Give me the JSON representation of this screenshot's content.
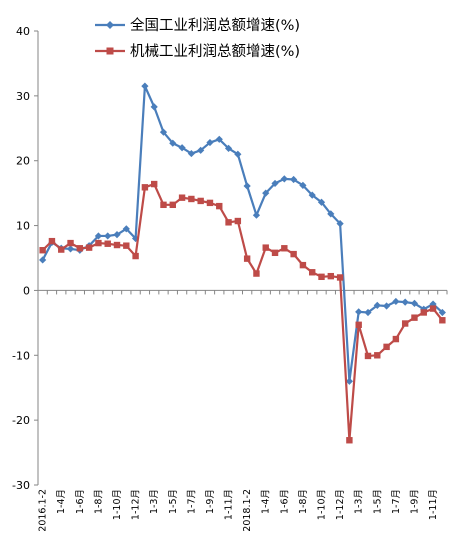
{
  "chart_data": {
    "type": "line",
    "title": "",
    "xlabel": "",
    "ylabel": "",
    "ylim": [
      -30,
      40
    ],
    "yticks": [
      40,
      30,
      20,
      10,
      0,
      -10,
      -20,
      -30
    ],
    "grid": false,
    "legend_position": "top-right",
    "x_tick_labels": [
      {
        "index": 0,
        "label": "2016.1-2"
      },
      {
        "index": 2,
        "label": "1-4月"
      },
      {
        "index": 4,
        "label": "1-6月"
      },
      {
        "index": 6,
        "label": "1-8月"
      },
      {
        "index": 8,
        "label": "1-10月"
      },
      {
        "index": 10,
        "label": "1-12月"
      },
      {
        "index": 12,
        "label": "1-3月"
      },
      {
        "index": 14,
        "label": "1-5月"
      },
      {
        "index": 16,
        "label": "1-7月"
      },
      {
        "index": 18,
        "label": "1-9月"
      },
      {
        "index": 20,
        "label": "1-11月"
      },
      {
        "index": 22,
        "label": "2018.1-2"
      },
      {
        "index": 24,
        "label": "1-4月"
      },
      {
        "index": 26,
        "label": "1-6月"
      },
      {
        "index": 28,
        "label": "1-8月"
      },
      {
        "index": 30,
        "label": "1-10月"
      },
      {
        "index": 32,
        "label": "1-12月"
      },
      {
        "index": 34,
        "label": "1-3月"
      },
      {
        "index": 36,
        "label": "1-5月"
      },
      {
        "index": 38,
        "label": "1-7月"
      },
      {
        "index": 40,
        "label": "1-9月"
      },
      {
        "index": 42,
        "label": "1-11月"
      }
    ],
    "series": [
      {
        "name": "全国工业利润总额增速(%)",
        "color": "#4a7ebb",
        "marker": "diamond",
        "values": [
          4.7,
          7.4,
          6.5,
          6.4,
          6.2,
          6.9,
          8.4,
          8.4,
          8.6,
          9.5,
          8.0,
          31.5,
          28.3,
          24.4,
          22.7,
          22.0,
          21.1,
          21.6,
          22.8,
          23.3,
          21.9,
          21.0,
          16.1,
          11.6,
          15.0,
          16.5,
          17.2,
          17.1,
          16.2,
          14.7,
          13.6,
          11.8,
          10.3,
          -14.0,
          -3.3,
          -3.4,
          -2.3,
          -2.4,
          -1.7,
          -1.8,
          -2.0,
          -2.9,
          -2.1,
          -3.4
        ]
      },
      {
        "name": "机械工业利润总额增速(%)",
        "color": "#be4b48",
        "marker": "square",
        "values": [
          6.2,
          7.6,
          6.3,
          7.3,
          6.5,
          6.6,
          7.3,
          7.2,
          7.0,
          6.9,
          5.3,
          15.9,
          16.4,
          13.2,
          13.2,
          14.3,
          14.1,
          13.8,
          13.5,
          13.0,
          10.5,
          10.7,
          4.9,
          2.6,
          6.6,
          5.8,
          6.5,
          5.6,
          3.9,
          2.8,
          2.1,
          2.2,
          2.0,
          -23.1,
          -5.3,
          -10.1,
          -10.0,
          -8.7,
          -7.5,
          -5.1,
          -4.2,
          -3.4,
          -2.8,
          -4.6
        ]
      }
    ]
  }
}
